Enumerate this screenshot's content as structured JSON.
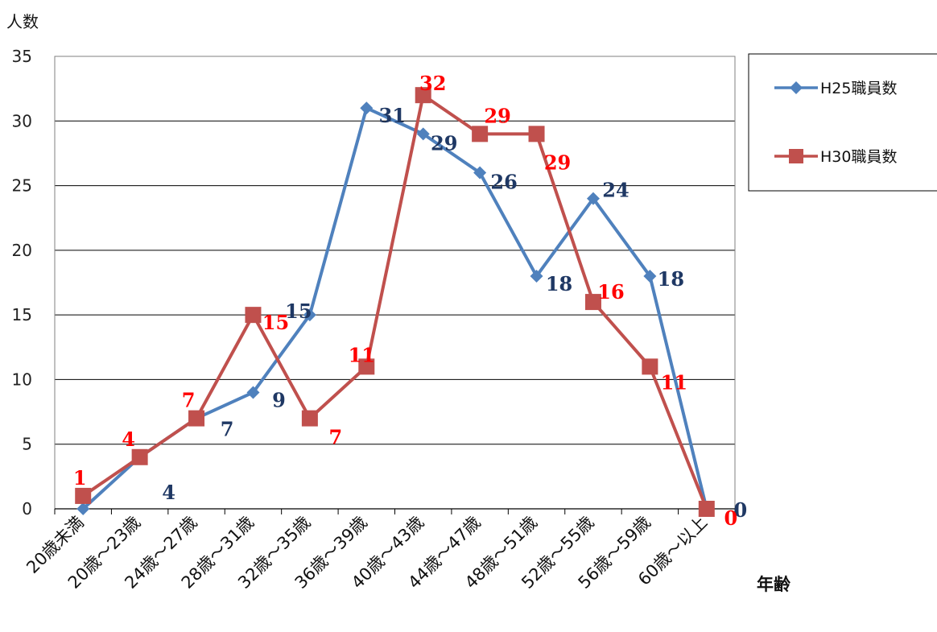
{
  "chart_data": {
    "type": "line",
    "ylabel": "人数",
    "xlabel": "年齢",
    "ylim": [
      0,
      35
    ],
    "yticks": [
      "0",
      "5",
      "10",
      "15",
      "20",
      "25",
      "30",
      "35"
    ],
    "categories": [
      "20歳未満",
      "20歳～23歳",
      "24歳～27歳",
      "28歳～31歳",
      "32歳～35歳",
      "36歳～39歳",
      "40歳～43歳",
      "44歳～47歳",
      "48歳～51歳",
      "52歳～55歳",
      "56歳～59歳",
      "60歳～以上"
    ],
    "grid": true,
    "legend": "right",
    "series": [
      {
        "name": "H25職員数",
        "color": "#4F81BD",
        "label_color": "#1F3864",
        "marker": "diamond",
        "values": [
          0,
          4,
          7,
          9,
          15,
          31,
          29,
          26,
          18,
          24,
          18,
          0
        ],
        "labels": [
          "",
          "4",
          "7",
          "9",
          "15",
          "31",
          "29",
          "26",
          "18",
          "24",
          "18",
          "0"
        ]
      },
      {
        "name": "H30職員数",
        "color": "#C0504D",
        "label_color": "#FF0000",
        "marker": "square",
        "values": [
          1,
          4,
          7,
          15,
          7,
          11,
          32,
          29,
          29,
          16,
          11,
          0
        ],
        "labels": [
          "1",
          "4",
          "7",
          "15",
          "7",
          "11",
          "32",
          "29",
          "29",
          "16",
          "11",
          "0"
        ]
      }
    ]
  }
}
